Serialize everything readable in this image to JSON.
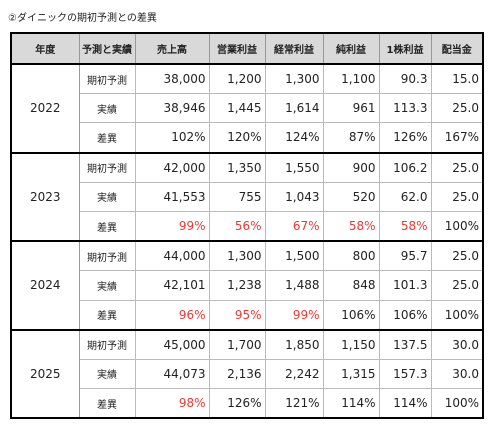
{
  "title": "②ダイニックの期初予測との差異",
  "table": {
    "header": [
      "年度",
      "予測と実績",
      "売上高",
      "営業利益",
      "経常利益",
      "純利益",
      "1株利益",
      "配当金"
    ],
    "highlight_color": "#e53935",
    "groups": [
      {
        "year": "2022",
        "rows": [
          {
            "label": "期初予測",
            "cells": [
              "38,000",
              "1,200",
              "1,300",
              "1,100",
              "90.3",
              "15.0"
            ]
          },
          {
            "label": "実績",
            "cells": [
              "38,946",
              "1,445",
              "1,614",
              "961",
              "113.3",
              "25.0"
            ]
          },
          {
            "label": "差異",
            "cells": [
              "102%",
              "120%",
              "124%",
              "87%",
              "126%",
              "167%"
            ],
            "red": []
          }
        ]
      },
      {
        "year": "2023",
        "rows": [
          {
            "label": "期初予測",
            "cells": [
              "42,000",
              "1,350",
              "1,550",
              "900",
              "106.2",
              "25.0"
            ]
          },
          {
            "label": "実績",
            "cells": [
              "41,553",
              "755",
              "1,043",
              "520",
              "62.0",
              "25.0"
            ]
          },
          {
            "label": "差異",
            "cells": [
              "99%",
              "56%",
              "67%",
              "58%",
              "58%",
              "100%"
            ],
            "red": [
              0,
              1,
              2,
              3,
              4
            ]
          }
        ]
      },
      {
        "year": "2024",
        "rows": [
          {
            "label": "期初予測",
            "cells": [
              "44,000",
              "1,300",
              "1,500",
              "800",
              "95.7",
              "25.0"
            ]
          },
          {
            "label": "実績",
            "cells": [
              "42,101",
              "1,238",
              "1,488",
              "848",
              "101.3",
              "25.0"
            ]
          },
          {
            "label": "差異",
            "cells": [
              "96%",
              "95%",
              "99%",
              "106%",
              "106%",
              "100%"
            ],
            "red": [
              0,
              1,
              2
            ]
          }
        ]
      },
      {
        "year": "2025",
        "rows": [
          {
            "label": "期初予測",
            "cells": [
              "45,000",
              "1,700",
              "1,850",
              "1,150",
              "137.5",
              "30.0"
            ]
          },
          {
            "label": "実績",
            "cells": [
              "44,073",
              "2,136",
              "2,242",
              "1,315",
              "157.3",
              "30.0"
            ]
          },
          {
            "label": "差異",
            "cells": [
              "98%",
              "126%",
              "121%",
              "114%",
              "114%",
              "100%"
            ],
            "red": [
              0
            ]
          }
        ]
      }
    ]
  }
}
